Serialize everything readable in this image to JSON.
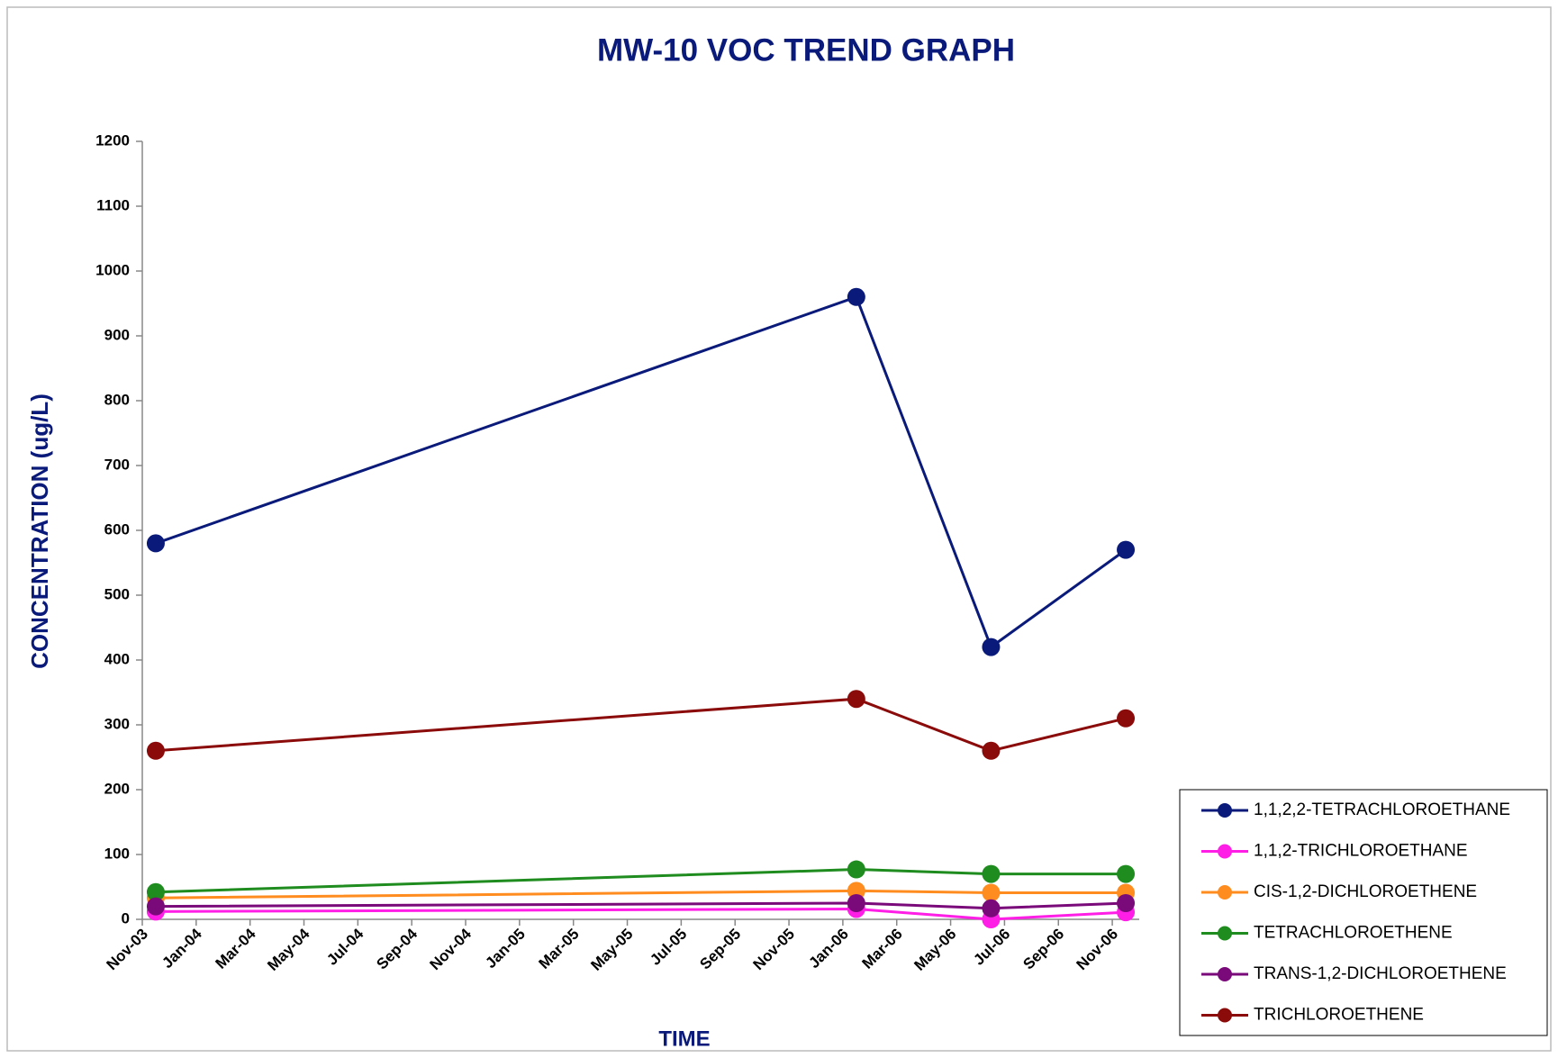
{
  "chart_data": {
    "type": "line",
    "title": "MW-10 VOC TREND GRAPH",
    "x_label": "TIME",
    "y_label": "CONCENTRATION (ug/L)",
    "x": [
      "2003-11",
      "2006-01",
      "2006-06",
      "2006-11"
    ],
    "series": [
      {
        "name": "1,1,2,2-TETRACHLOROETHANE",
        "color": "#0a1a7a",
        "values": [
          580,
          960,
          420,
          570
        ]
      },
      {
        "name": "1,1,2-TRICHLOROETHANE",
        "color": "#ff1ee6",
        "values": [
          12,
          16,
          0,
          11
        ]
      },
      {
        "name": "CIS-1,2-DICHLOROETHENE",
        "color": "#ff8c1e",
        "values": [
          33,
          44,
          41,
          41
        ]
      },
      {
        "name": "TETRACHLOROETHENE",
        "color": "#1e8c1e",
        "values": [
          42,
          77,
          70,
          70
        ]
      },
      {
        "name": "TRANS-1,2-DICHLOROETHENE",
        "color": "#7a0a7a",
        "values": [
          20,
          25,
          17,
          25
        ]
      },
      {
        "name": "TRICHLOROETHENE",
        "color": "#8b0a0a",
        "values": [
          260,
          340,
          260,
          310
        ]
      }
    ],
    "xlim": [
      "2003-11",
      "2006-12"
    ],
    "xticks": [
      {
        "value": "2003-11",
        "label": "Nov-03"
      },
      {
        "value": "2004-01",
        "label": "Jan-04"
      },
      {
        "value": "2004-03",
        "label": "Mar-04"
      },
      {
        "value": "2004-05",
        "label": "May-04"
      },
      {
        "value": "2004-07",
        "label": "Jul-04"
      },
      {
        "value": "2004-09",
        "label": "Sep-04"
      },
      {
        "value": "2004-11",
        "label": "Nov-04"
      },
      {
        "value": "2005-01",
        "label": "Jan-05"
      },
      {
        "value": "2005-03",
        "label": "Mar-05"
      },
      {
        "value": "2005-05",
        "label": "May-05"
      },
      {
        "value": "2005-07",
        "label": "Jul-05"
      },
      {
        "value": "2005-09",
        "label": "Sep-05"
      },
      {
        "value": "2005-11",
        "label": "Nov-05"
      },
      {
        "value": "2006-01",
        "label": "Jan-06"
      },
      {
        "value": "2006-03",
        "label": "Mar-06"
      },
      {
        "value": "2006-05",
        "label": "May-06"
      },
      {
        "value": "2006-07",
        "label": "Jul-06"
      },
      {
        "value": "2006-09",
        "label": "Sep-06"
      },
      {
        "value": "2006-11",
        "label": "Nov-06"
      }
    ],
    "ylim": [
      0,
      1200
    ],
    "yticks": [
      0,
      100,
      200,
      300,
      400,
      500,
      600,
      700,
      800,
      900,
      1000,
      1100,
      1200
    ],
    "legend": "lower right"
  }
}
